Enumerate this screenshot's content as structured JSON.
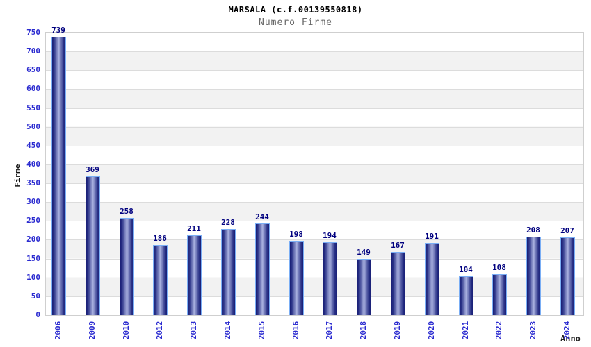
{
  "chart_data": {
    "type": "bar",
    "title": "MARSALA (c.f.00139550818)",
    "subtitle": "Numero Firme",
    "xlabel": "Anno",
    "ylabel": "Firme",
    "categories": [
      "2006",
      "2009",
      "2010",
      "2012",
      "2013",
      "2014",
      "2015",
      "2016",
      "2017",
      "2018",
      "2019",
      "2020",
      "2021",
      "2022",
      "2023",
      "2024"
    ],
    "values": [
      739,
      369,
      258,
      186,
      211,
      228,
      244,
      198,
      194,
      149,
      167,
      191,
      104,
      108,
      208,
      207
    ],
    "ylim": [
      0,
      750
    ],
    "ytick_step": 50,
    "grid": true,
    "legend_position": "none",
    "colors": {
      "tick_label": "#2b2bd0",
      "value_label": "#00007f",
      "bar_border": "#7aaef5",
      "bar_dark": "#191f76",
      "bar_mid": "#2a3287",
      "bar_light": "#aab2e0",
      "band": "#f2f2f2",
      "gridline": "#dcdcdc",
      "plot_border": "#cfcfcf",
      "title_color": "#000000",
      "subtitle_color": "#666666",
      "axis_title_color": "#222222"
    }
  }
}
